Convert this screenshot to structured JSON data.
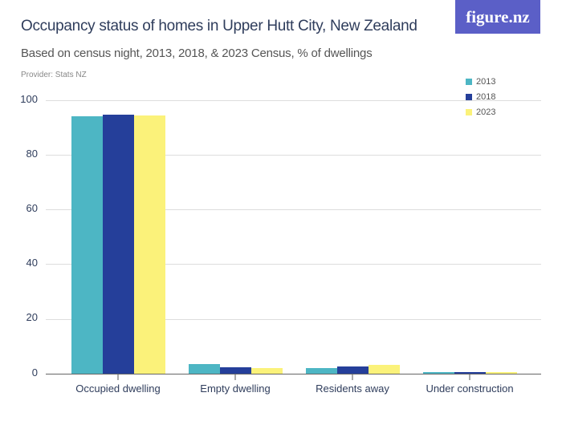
{
  "header": {
    "title": "Occupancy status of homes in Upper Hutt City, New Zealand",
    "subtitle": "Based on census night, 2013, 2018, & 2023 Census, % of dwellings",
    "provider": "Provider: Stats NZ",
    "logo": "figure.nz"
  },
  "legend": [
    {
      "label": "2013",
      "color": "#4db6c4"
    },
    {
      "label": "2018",
      "color": "#253f9a"
    },
    {
      "label": "2023",
      "color": "#fbf27a"
    }
  ],
  "y_ticks": [
    "100",
    "80",
    "60",
    "40",
    "20",
    "0"
  ],
  "chart_data": {
    "type": "bar",
    "title": "Occupancy status of homes in Upper Hutt City, New Zealand",
    "subtitle": "Based on census night, 2013, 2018, & 2023 Census, % of dwellings",
    "xlabel": "",
    "ylabel": "% of dwellings",
    "ylim": [
      0,
      100
    ],
    "yticks": [
      0,
      20,
      40,
      60,
      80,
      100
    ],
    "grid": true,
    "legend_position": "top-right",
    "categories": [
      "Occupied dwelling",
      "Empty dwelling",
      "Residents away",
      "Under construction"
    ],
    "series": [
      {
        "name": "2013",
        "color": "#4db6c4",
        "values": [
          94.1,
          3.5,
          2.0,
          0.5
        ]
      },
      {
        "name": "2018",
        "color": "#253f9a",
        "values": [
          94.7,
          2.3,
          2.6,
          0.5
        ]
      },
      {
        "name": "2023",
        "color": "#fbf27a",
        "values": [
          94.3,
          2.0,
          3.2,
          0.5
        ]
      }
    ]
  }
}
